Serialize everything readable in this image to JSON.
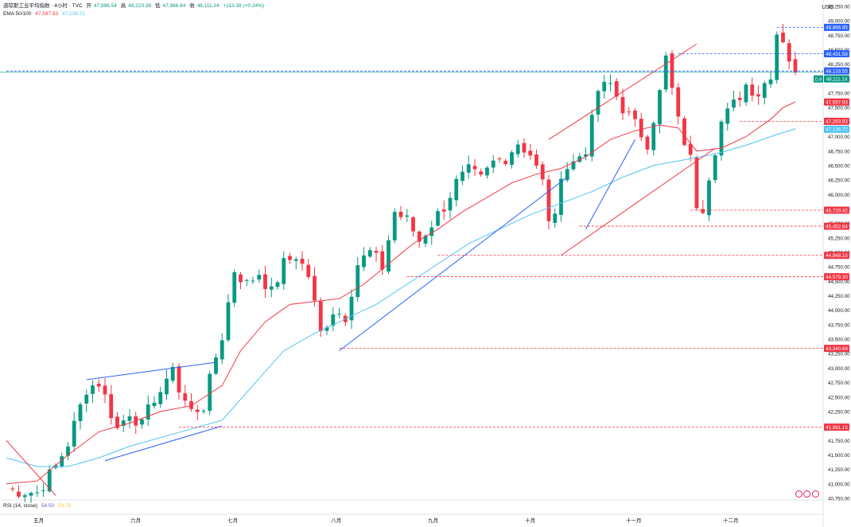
{
  "header": {
    "title": "道琼斯工业平均指数 · 4小时 · TVC",
    "open_label": "开",
    "open": "47,996.54",
    "high_label": "高",
    "high": "48,223.38",
    "low_label": "低",
    "low": "47,966.84",
    "close_label": "收",
    "close": "48,111.24",
    "change": "+113.38 (+0.24%)",
    "ema_label": "EMA 50/100",
    "ema50": "47,597.93",
    "ema100": "47,136.72",
    "rsi_label": "RSI (14, close)",
    "rsi_value": "54.50",
    "rsi_ma": "59.79"
  },
  "currency": "USD",
  "colors": {
    "up": "#089981",
    "down": "#f23645",
    "ema50": "#f23645",
    "ema100": "#4fc3f7",
    "trend_blue": "#2962ff",
    "trend_red": "#f23645",
    "level_red": "#f23645",
    "level_blue": "#2962ff",
    "price_line": "#089981"
  },
  "chart_data": {
    "type": "candlestick",
    "title": "道琼斯工业平均指数 · 4小时 · TVC",
    "ylim": [
      40750,
      49250
    ],
    "y_ticks": [
      40750,
      41000,
      41250,
      41500,
      41750,
      42000,
      42250,
      42500,
      42750,
      43000,
      43250,
      43500,
      43750,
      44000,
      44250,
      44500,
      44750,
      45000,
      45250,
      45500,
      45750,
      46000,
      46250,
      46500,
      46750,
      47000,
      47250,
      47500,
      47750,
      48000,
      48250,
      48500,
      48750,
      49000,
      49250
    ],
    "x_ticks": [
      {
        "label": "五月",
        "i": 5
      },
      {
        "label": "六月",
        "i": 20
      },
      {
        "label": "七月",
        "i": 35
      },
      {
        "label": "八月",
        "i": 51
      },
      {
        "label": "九月",
        "i": 66
      },
      {
        "label": "十月",
        "i": 81
      },
      {
        "label": "十一月",
        "i": 97
      },
      {
        "label": "十二月",
        "i": 112
      }
    ],
    "n_bars": 122,
    "close_path": [
      [
        0,
        40900
      ],
      [
        5,
        40850
      ],
      [
        8,
        41300
      ],
      [
        10,
        41700
      ],
      [
        13,
        42650
      ],
      [
        15,
        42750
      ],
      [
        16,
        42500
      ],
      [
        18,
        41950
      ],
      [
        20,
        42250
      ],
      [
        22,
        42000
      ],
      [
        24,
        42500
      ],
      [
        26,
        42700
      ],
      [
        27,
        43100
      ],
      [
        28,
        42600
      ],
      [
        30,
        42250
      ],
      [
        32,
        42350
      ],
      [
        34,
        43200
      ],
      [
        35,
        43550
      ],
      [
        37,
        44700
      ],
      [
        39,
        44450
      ],
      [
        41,
        44650
      ],
      [
        43,
        44300
      ],
      [
        45,
        44800
      ],
      [
        47,
        44950
      ],
      [
        49,
        44600
      ],
      [
        51,
        43600
      ],
      [
        53,
        44000
      ],
      [
        55,
        43900
      ],
      [
        57,
        44800
      ],
      [
        59,
        45000
      ],
      [
        61,
        44750
      ],
      [
        63,
        45700
      ],
      [
        65,
        45550
      ],
      [
        67,
        45200
      ],
      [
        69,
        45500
      ],
      [
        71,
        45800
      ],
      [
        73,
        46200
      ],
      [
        75,
        46400
      ],
      [
        77,
        46250
      ],
      [
        79,
        46550
      ],
      [
        81,
        46650
      ],
      [
        83,
        46900
      ],
      [
        85,
        46700
      ],
      [
        87,
        46200
      ],
      [
        88,
        45600
      ],
      [
        89,
        45550
      ],
      [
        90,
        46400
      ],
      [
        92,
        46550
      ],
      [
        94,
        46800
      ],
      [
        95,
        47250
      ],
      [
        96,
        47800
      ],
      [
        98,
        47900
      ],
      [
        100,
        47500
      ],
      [
        102,
        47200
      ],
      [
        104,
        46900
      ],
      [
        106,
        47750
      ],
      [
        107,
        48350
      ],
      [
        108,
        47800
      ],
      [
        109,
        47250
      ],
      [
        111,
        46600
      ],
      [
        112,
        45850
      ],
      [
        113,
        45800
      ],
      [
        114,
        46350
      ],
      [
        116,
        47250
      ],
      [
        118,
        47550
      ],
      [
        120,
        47900
      ],
      [
        122,
        47750
      ],
      [
        124,
        48100
      ],
      [
        125,
        48800
      ],
      [
        126,
        48700
      ],
      [
        127,
        48350
      ],
      [
        128,
        48111.24
      ]
    ],
    "ema50": [
      [
        0,
        41000
      ],
      [
        5,
        41050
      ],
      [
        10,
        41500
      ],
      [
        15,
        41900
      ],
      [
        20,
        42050
      ],
      [
        25,
        42250
      ],
      [
        30,
        42350
      ],
      [
        35,
        42700
      ],
      [
        38,
        43300
      ],
      [
        42,
        43800
      ],
      [
        46,
        44100
      ],
      [
        50,
        44150
      ],
      [
        54,
        44200
      ],
      [
        58,
        44450
      ],
      [
        62,
        44800
      ],
      [
        66,
        45150
      ],
      [
        70,
        45400
      ],
      [
        74,
        45700
      ],
      [
        78,
        45950
      ],
      [
        82,
        46200
      ],
      [
        86,
        46350
      ],
      [
        90,
        46450
      ],
      [
        94,
        46650
      ],
      [
        98,
        46950
      ],
      [
        102,
        47100
      ],
      [
        106,
        47200
      ],
      [
        109,
        47150
      ],
      [
        112,
        46750
      ],
      [
        116,
        46800
      ],
      [
        120,
        47000
      ],
      [
        124,
        47300
      ],
      [
        126,
        47500
      ],
      [
        128,
        47597.93
      ]
    ],
    "ema100": [
      [
        0,
        41450
      ],
      [
        5,
        41300
      ],
      [
        10,
        41300
      ],
      [
        15,
        41450
      ],
      [
        20,
        41650
      ],
      [
        25,
        41800
      ],
      [
        30,
        41950
      ],
      [
        35,
        42100
      ],
      [
        40,
        42700
      ],
      [
        45,
        43300
      ],
      [
        50,
        43600
      ],
      [
        55,
        43850
      ],
      [
        60,
        44100
      ],
      [
        65,
        44450
      ],
      [
        70,
        44800
      ],
      [
        75,
        45150
      ],
      [
        80,
        45400
      ],
      [
        85,
        45650
      ],
      [
        90,
        45850
      ],
      [
        95,
        46050
      ],
      [
        100,
        46300
      ],
      [
        105,
        46500
      ],
      [
        110,
        46600
      ],
      [
        115,
        46700
      ],
      [
        120,
        46850
      ],
      [
        124,
        47000
      ],
      [
        128,
        47136.72
      ]
    ],
    "trendlines": [
      {
        "color": "blue",
        "from": [
          13,
          42800
        ],
        "to": [
          34,
          43100
        ]
      },
      {
        "color": "blue",
        "from": [
          16,
          41400
        ],
        "to": [
          35,
          42000
        ]
      },
      {
        "color": "blue",
        "from": [
          54,
          43300
        ],
        "to": [
          91,
          46300
        ]
      },
      {
        "color": "blue",
        "from": [
          94,
          45400
        ],
        "to": [
          102,
          46950
        ]
      },
      {
        "color": "red",
        "from": [
          88,
          46950
        ],
        "to": [
          112,
          48600
        ]
      },
      {
        "color": "red",
        "from": [
          90,
          44950
        ],
        "to": [
          115,
          46800
        ]
      },
      {
        "color": "red",
        "from": [
          0,
          41750
        ],
        "to": [
          8,
          40800
        ]
      }
    ],
    "levels": [
      {
        "value": 48886.85,
        "label": "48,886.85",
        "style": "blue",
        "from_i": 125
      },
      {
        "value": 48431.58,
        "label": "48,431.58",
        "style": "blue",
        "from_i": 109
      },
      {
        "value": 48133.55,
        "label": "48,133.55",
        "style": "blue",
        "from_i": 0
      },
      {
        "value": 47263.93,
        "label": "47,263.93",
        "style": "red",
        "from_i": 119
      },
      {
        "value": 45729.42,
        "label": "45,729.42",
        "style": "red",
        "from_i": 111
      },
      {
        "value": 45452.84,
        "label": "45,452.84",
        "style": "red",
        "from_i": 93
      },
      {
        "value": 44948.15,
        "label": "44,948.15",
        "style": "red",
        "from_i": 70
      },
      {
        "value": 44579.3,
        "label": "44,579.30",
        "style": "red",
        "from_i": 65
      },
      {
        "value": 43340.69,
        "label": "43,340.69",
        "style": "red",
        "from_i": 54
      },
      {
        "value": 41981.15,
        "label": "41,981.15",
        "style": "red",
        "from_i": 28
      }
    ],
    "price_tags": [
      {
        "value": 48886.85,
        "label": "48,886.85",
        "color": "#2962ff"
      },
      {
        "value": 48431.58,
        "label": "48,431.58",
        "color": "#2962ff"
      },
      {
        "value": 48133.55,
        "label": "48,133.55",
        "color": "#2962ff"
      },
      {
        "value": 48111.24,
        "label": "48,111.24",
        "color": "#089981"
      },
      {
        "value": 47597.93,
        "label": "47,597.93",
        "color": "#f23645"
      },
      {
        "value": 47263.93,
        "label": "47,263.93",
        "color": "#f23645"
      },
      {
        "value": 47136.72,
        "label": "47,136.72",
        "color": "#4fc3f7"
      },
      {
        "value": 45729.42,
        "label": "45,729.42",
        "color": "#f23645"
      },
      {
        "value": 45452.84,
        "label": "45,452.84",
        "color": "#f23645"
      },
      {
        "value": 44948.15,
        "label": "44,948.15",
        "color": "#f23645"
      },
      {
        "value": 44579.3,
        "label": "44,579.30",
        "color": "#f23645"
      },
      {
        "value": 43340.69,
        "label": "43,340.69",
        "color": "#f23645"
      },
      {
        "value": 41981.15,
        "label": "41,981.15",
        "color": "#f23645"
      }
    ],
    "last_tag_prefix": "D.8"
  }
}
